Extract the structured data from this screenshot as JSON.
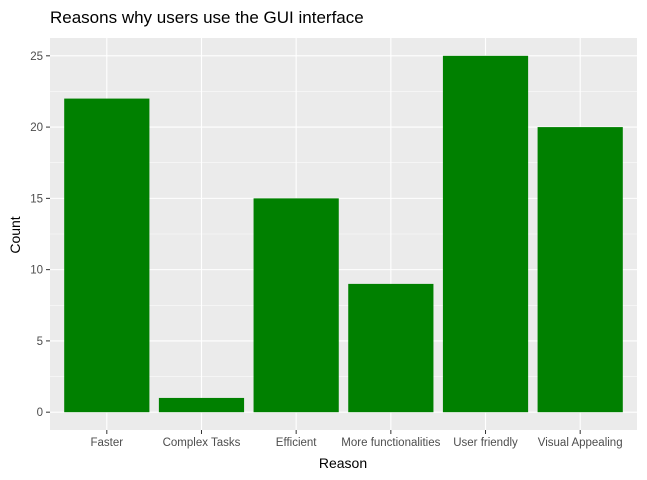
{
  "chart_data": {
    "type": "bar",
    "title": "Reasons why users use the GUI interface",
    "xlabel": "Reason",
    "ylabel": "Count",
    "categories": [
      "Faster",
      "Complex Tasks",
      "Efficient",
      "More functionalities",
      "User friendly",
      "Visual Appealing"
    ],
    "values": [
      22,
      1,
      15,
      9,
      25,
      20
    ],
    "ylim": [
      -1.25,
      26.25
    ],
    "yticks": [
      0,
      5,
      10,
      15,
      20,
      25
    ],
    "ytick_labels": [
      "0",
      "5",
      "10",
      "15",
      "20",
      "25"
    ],
    "grid": true,
    "legend": "none",
    "colors": {
      "bar": "#008000",
      "panel_background": "#ebebeb",
      "grid_major": "#ffffff",
      "tick_label": "#4d4d4d"
    }
  }
}
